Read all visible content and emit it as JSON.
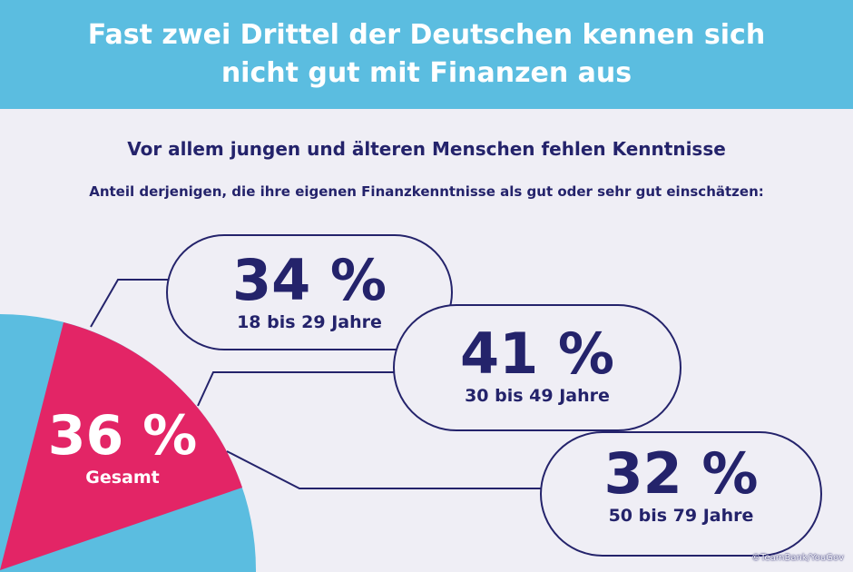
{
  "title_line1": "Fast zwei Drittel der Deutschen kennen sich",
  "title_line2": "nicht gut mit Finanzen aus",
  "subtitle": "Vor allem jungen und älteren Menschen fehlen Kenntnisse",
  "note": "Anteil derjenigen, die ihre eigenen Finanzkenntnisse als gut oder sehr gut einschätzen:",
  "colors": {
    "header": "#5bbde0",
    "accent": "#e32566",
    "text": "#24236b",
    "background": "#efeef5"
  },
  "chart_data": {
    "type": "pie",
    "total": {
      "value": 36,
      "label": "36 %",
      "name": "Gesamt"
    },
    "categories": [
      "18 bis 29 Jahre",
      "30 bis 49 Jahre",
      "50 bis 79 Jahre"
    ],
    "values": [
      34,
      41,
      32
    ],
    "labels": [
      "34 %",
      "41 %",
      "32 %"
    ]
  },
  "credit": "©TeamBank/YouGov"
}
